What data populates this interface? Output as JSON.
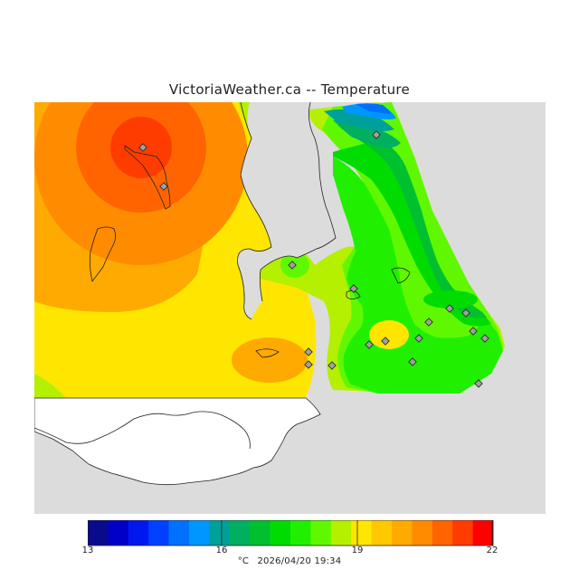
{
  "title": "VictoriaWeather.ca -- Temperature",
  "caption": {
    "unit": "°C",
    "timestamp": "2026/04/20 19:34"
  },
  "colorbar": {
    "ticks": [
      "13",
      "16",
      "19",
      "22"
    ],
    "colors": [
      "#0a0a8c",
      "#0000c8",
      "#0018f0",
      "#0040ff",
      "#0070ff",
      "#0096ff",
      "#00a09a",
      "#00b060",
      "#00c030",
      "#00dc00",
      "#20f000",
      "#60f800",
      "#b4f000",
      "#ffe600",
      "#ffc800",
      "#ffaa00",
      "#ff8c00",
      "#ff6400",
      "#ff3c00",
      "#ff0000"
    ]
  },
  "map": {
    "land_color": "#ffffff",
    "water_color": "#dcdcdc",
    "station_count": 18
  }
}
